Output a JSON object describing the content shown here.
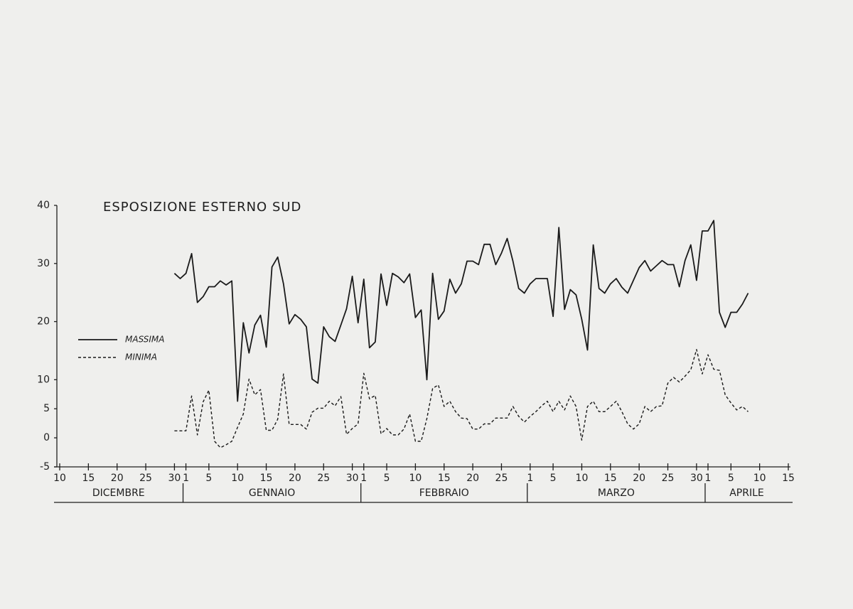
{
  "chart_data": {
    "type": "line",
    "title": "ESPOSIZIONE ESTERNO SUD",
    "months": [
      "DICEMBRE",
      "GENNAIO",
      "FEBBRAIO",
      "MARZO",
      "APRILE"
    ],
    "xlim": [
      10,
      137
    ],
    "xticks": [
      10,
      15,
      20,
      25,
      30,
      {
        "value": 32,
        "label": "1"
      },
      {
        "value": 36,
        "label": "5"
      },
      {
        "value": 41,
        "label": "10"
      },
      {
        "value": 46,
        "label": "15"
      },
      {
        "value": 51,
        "label": "20"
      },
      {
        "value": 56,
        "label": "25"
      },
      {
        "value": 61,
        "label": "30"
      },
      {
        "value": 63,
        "label": "1"
      },
      {
        "value": 67,
        "label": "5"
      },
      {
        "value": 72,
        "label": "10"
      },
      {
        "value": 77,
        "label": "15"
      },
      {
        "value": 82,
        "label": "20"
      },
      {
        "value": 87,
        "label": "25"
      },
      {
        "value": 92,
        "label": "1"
      },
      {
        "value": 96,
        "label": "5"
      },
      {
        "value": 101,
        "label": "10"
      },
      {
        "value": 106,
        "label": "15"
      },
      {
        "value": 111,
        "label": "20"
      },
      {
        "value": 116,
        "label": "25"
      },
      {
        "value": 121,
        "label": "30"
      },
      {
        "value": 123,
        "label": "1"
      },
      {
        "value": 127,
        "label": "5"
      },
      {
        "value": 132,
        "label": "10"
      },
      {
        "value": 137,
        "label": "15"
      }
    ],
    "ylim": [
      -5,
      40
    ],
    "yticks": [
      -5,
      0,
      5,
      10,
      20,
      30,
      40
    ],
    "x": [
      30,
      31,
      32,
      33,
      34,
      35,
      36,
      37,
      38,
      39,
      40,
      41,
      42,
      43,
      44,
      45,
      46,
      47,
      48,
      49,
      50,
      51,
      52,
      53,
      54,
      55,
      56,
      57,
      58,
      59,
      60,
      61,
      62,
      63,
      64,
      65,
      66,
      67,
      68,
      69,
      70,
      71,
      72,
      73,
      74,
      75,
      76,
      77,
      78,
      79,
      80,
      81,
      82,
      83,
      84,
      85,
      86,
      87,
      88,
      89,
      90,
      91,
      92,
      93,
      94,
      95,
      96,
      97,
      98,
      99,
      100,
      101,
      102,
      103,
      104,
      105,
      106,
      107,
      108,
      109,
      110,
      111,
      112,
      113,
      114,
      115,
      116,
      117,
      118,
      119,
      120,
      121,
      122,
      123,
      124,
      125,
      126,
      127,
      128,
      129,
      130
    ],
    "series": [
      {
        "name": "MASSIMA",
        "color": "#1a1a1a",
        "style": "solid",
        "values": [
          28.3,
          27.4,
          28.3,
          31.7,
          23.3,
          24.3,
          26,
          26,
          27,
          26.3,
          27,
          6.3,
          19.8,
          14.6,
          19.4,
          21.1,
          15.6,
          29.4,
          31.1,
          26.5,
          19.6,
          21.2,
          20.4,
          19.1,
          10.1,
          9.4,
          19.1,
          17.4,
          16.6,
          19.4,
          22.2,
          27.8,
          19.8,
          27.3,
          15.5,
          16.5,
          28.2,
          22.8,
          28.3,
          27.7,
          26.7,
          28.2,
          20.7,
          22,
          10,
          28.3,
          20.4,
          21.8,
          27.3,
          24.9,
          26.5,
          30.4,
          30.4,
          29.8,
          33.3,
          33.3,
          29.8,
          31.8,
          34.3,
          30.4,
          25.7,
          24.9,
          26.5,
          27.4,
          27.4,
          27.4,
          20.9,
          36.2,
          22.1,
          25.5,
          24.6,
          20.4,
          15.1,
          33.2,
          25.7,
          24.9,
          26.5,
          27.4,
          25.9,
          24.9,
          27.1,
          29.3,
          30.5,
          28.7,
          29.6,
          30.5,
          29.8,
          29.8,
          26,
          30.5,
          33.2,
          27.1,
          35.6,
          35.6,
          37.4,
          21.6,
          19,
          21.6,
          21.6,
          23,
          24.9
        ]
      },
      {
        "name": "MINIMA",
        "color": "#1a1a1a",
        "style": "dashed",
        "values": [
          1.2,
          1.2,
          1.2,
          7.2,
          0.5,
          6.2,
          8.2,
          -0.6,
          -1.7,
          -1.2,
          -0.6,
          1.8,
          4.1,
          10.1,
          7.4,
          8.3,
          1.3,
          1.3,
          3.2,
          11,
          2.3,
          2.3,
          2.3,
          1.5,
          4.4,
          5.1,
          5.1,
          6.3,
          5.5,
          7.1,
          0.6,
          1.6,
          2.4,
          11.1,
          6.7,
          7.3,
          0.7,
          1.6,
          0.5,
          0.5,
          1.5,
          4.1,
          -0.6,
          -0.6,
          3.3,
          8.5,
          9.1,
          5.4,
          6.3,
          4.5,
          3.4,
          3.3,
          1.5,
          1.5,
          2.4,
          2.4,
          3.4,
          3.4,
          3.4,
          5.4,
          3.7,
          2.7,
          3.7,
          4.5,
          5.5,
          6.3,
          4.5,
          6.3,
          4.8,
          7.2,
          5.4,
          -0.4,
          5.4,
          6.3,
          4.5,
          4.5,
          5.4,
          6.3,
          4.5,
          2.4,
          1.5,
          2.4,
          5.4,
          4.5,
          5.4,
          5.5,
          9.4,
          10.4,
          9.6,
          10.6,
          11.7,
          15.2,
          11,
          14.3,
          11.8,
          11.6,
          7.4,
          6,
          4.8,
          5.4,
          4.5
        ]
      }
    ]
  }
}
